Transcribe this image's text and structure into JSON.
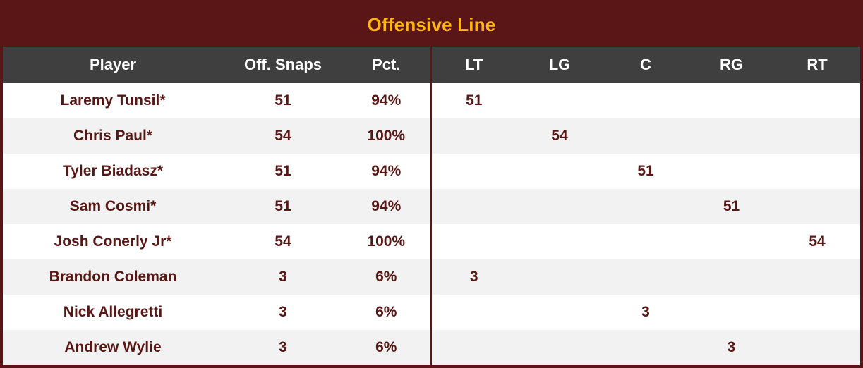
{
  "title": "Offensive Line",
  "colors": {
    "banner": "#5A1616",
    "gold": "#FFB612",
    "header_bg": "#3F3F3F",
    "header_text": "#FFFFFF",
    "row_text": "#571715",
    "row_alt_bg": "#F2F2F2",
    "row_bg": "#FFFFFF",
    "divider": "#5A1616"
  },
  "chart_data": {
    "type": "table",
    "title": "Offensive Line",
    "columns": [
      "Player",
      "Off. Snaps",
      "Pct.",
      "LT",
      "LG",
      "C",
      "RG",
      "RT"
    ],
    "rows": [
      [
        "Laremy Tunsil*",
        "51",
        "94%",
        "51",
        "",
        "",
        "",
        ""
      ],
      [
        "Chris Paul*",
        "54",
        "100%",
        "",
        "54",
        "",
        "",
        ""
      ],
      [
        "Tyler Biadasz*",
        "51",
        "94%",
        "",
        "",
        "51",
        "",
        ""
      ],
      [
        "Sam Cosmi*",
        "51",
        "94%",
        "",
        "",
        "",
        "51",
        ""
      ],
      [
        "Josh Conerly Jr*",
        "54",
        "100%",
        "",
        "",
        "",
        "",
        "54"
      ],
      [
        "Brandon Coleman",
        "3",
        "6%",
        "3",
        "",
        "",
        "",
        ""
      ],
      [
        "Nick Allegretti",
        "3",
        "6%",
        "",
        "",
        "3",
        "",
        ""
      ],
      [
        "Andrew Wylie",
        "3",
        "6%",
        "",
        "",
        "",
        "3",
        ""
      ]
    ]
  }
}
